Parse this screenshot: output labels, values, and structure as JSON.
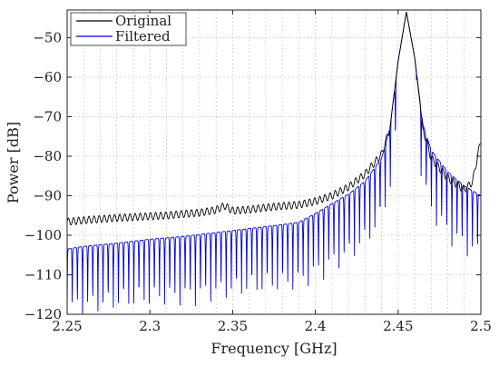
{
  "chart_data": {
    "type": "line",
    "xlabel": "Frequency [GHz]",
    "ylabel": "Power [dB]",
    "xlim": [
      2.25,
      2.5
    ],
    "ylim": [
      -120,
      -43
    ],
    "x_ticks": [
      2.25,
      2.3,
      2.35,
      2.4,
      2.45,
      2.5
    ],
    "x_tick_labels": [
      "2.25",
      "2.3",
      "2.35",
      "2.4",
      "2.45",
      "2.5"
    ],
    "y_ticks": [
      -120,
      -110,
      -100,
      -90,
      -80,
      -70,
      -60,
      -50
    ],
    "y_tick_labels": [
      "−120",
      "−110",
      "−100",
      "−90",
      "−80",
      "−70",
      "−60",
      "−50"
    ],
    "x_minor_grid_step": 0.01,
    "grid": true,
    "legend_position": "top-left",
    "series": [
      {
        "name": "Original",
        "color": "#000000",
        "points": [
          [
            2.25,
            -96.6
          ],
          [
            2.26,
            -96.2
          ],
          [
            2.27,
            -95.9
          ],
          [
            2.28,
            -95.6
          ],
          [
            2.29,
            -95.4
          ],
          [
            2.3,
            -95.2
          ],
          [
            2.31,
            -95.0
          ],
          [
            2.32,
            -94.6
          ],
          [
            2.33,
            -94.3
          ],
          [
            2.34,
            -93.6
          ],
          [
            2.345,
            -92.5
          ],
          [
            2.35,
            -93.8
          ],
          [
            2.36,
            -93.5
          ],
          [
            2.37,
            -93.0
          ],
          [
            2.38,
            -92.6
          ],
          [
            2.39,
            -92.3
          ],
          [
            2.4,
            -91.4
          ],
          [
            2.41,
            -90.0
          ],
          [
            2.42,
            -87.8
          ],
          [
            2.43,
            -84.5
          ],
          [
            2.44,
            -79.5
          ],
          [
            2.445,
            -73.0
          ],
          [
            2.45,
            -56.0
          ],
          [
            2.455,
            -43.5
          ],
          [
            2.46,
            -55.0
          ],
          [
            2.465,
            -73.0
          ],
          [
            2.47,
            -80.5
          ],
          [
            2.48,
            -85.5
          ],
          [
            2.49,
            -88.5
          ],
          [
            2.495,
            -86.5
          ],
          [
            2.498,
            -80.0
          ],
          [
            2.5,
            -76.0
          ]
        ],
        "ripple_amplitude": 0.9
      },
      {
        "name": "Filtered",
        "color": "#0000dd",
        "envelope_points": [
          [
            2.25,
            -103.5
          ],
          [
            2.26,
            -102.8
          ],
          [
            2.28,
            -102.0
          ],
          [
            2.3,
            -101.0
          ],
          [
            2.32,
            -100.3
          ],
          [
            2.34,
            -99.3
          ],
          [
            2.36,
            -98.3
          ],
          [
            2.38,
            -97.3
          ],
          [
            2.39,
            -96.7
          ],
          [
            2.4,
            -94.5
          ],
          [
            2.41,
            -92.0
          ],
          [
            2.42,
            -89.6
          ],
          [
            2.43,
            -86.3
          ],
          [
            2.44,
            -80.5
          ],
          [
            2.445,
            -73.0
          ],
          [
            2.45,
            -56.0
          ],
          [
            2.455,
            -43.5
          ],
          [
            2.46,
            -55.0
          ],
          [
            2.465,
            -72.0
          ],
          [
            2.47,
            -78.5
          ],
          [
            2.48,
            -84.0
          ],
          [
            2.49,
            -87.5
          ],
          [
            2.5,
            -90.0
          ]
        ],
        "notch_depth": 18,
        "notch_spacing": 0.0031,
        "y_floor": -120
      }
    ]
  }
}
